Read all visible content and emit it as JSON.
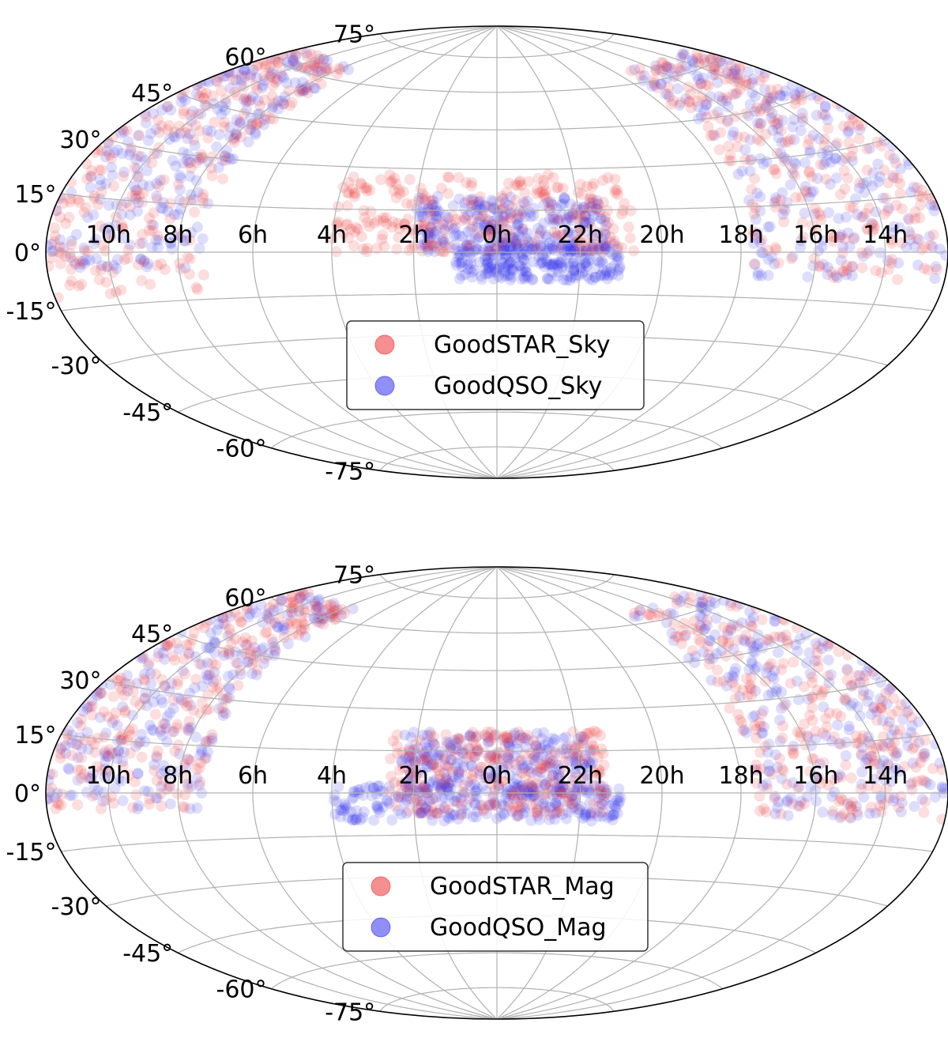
{
  "chart_data": [
    {
      "type": "scatter",
      "projection": "hammer",
      "ra_tick_labels": [
        "14h",
        "16h",
        "18h",
        "20h",
        "22h",
        "0h",
        "2h",
        "4h",
        "6h",
        "8h",
        "10h"
      ],
      "ra_tick_hours": [
        14,
        16,
        18,
        20,
        22,
        0,
        2,
        4,
        6,
        8,
        10
      ],
      "dec_tick_labels": [
        "75°",
        "60°",
        "45°",
        "30°",
        "15°",
        "0°",
        "-15°",
        "-30°",
        "-45°",
        "-60°",
        "-75°"
      ],
      "dec_tick_values": [
        75,
        60,
        45,
        30,
        15,
        0,
        -15,
        -30,
        -45,
        -60,
        -75
      ],
      "grid": true,
      "legend_position": "lower-center",
      "series": [
        {
          "name": "GoodSTAR_Sky",
          "color": "#ee3333"
        },
        {
          "name": "GoodQSO_Sky",
          "color": "#3333ee"
        }
      ],
      "regions": [
        {
          "series": "GoodQSO_Sky",
          "ra_min": -45,
          "ra_max": 15,
          "dec_min": -10,
          "dec_max": 3
        },
        {
          "series": "GoodQSO_Sky",
          "ra_min": -40,
          "ra_max": 30,
          "dec_min": 0,
          "dec_max": 20
        },
        {
          "series": "GoodSTAR_Sky",
          "ra_min": -50,
          "ra_max": 60,
          "dec_min": 0,
          "dec_max": 28
        },
        {
          "series": "GoodQSO_Sky",
          "ra_min": 110,
          "ra_max": 180,
          "dec_min": -5,
          "dec_max": 65
        },
        {
          "series": "GoodSTAR_Sky",
          "ra_min": 110,
          "ra_max": 180,
          "dec_min": -12,
          "dec_max": 65
        },
        {
          "series": "GoodQSO_Sky",
          "ra_min": -180,
          "ra_max": -95,
          "dec_min": -8,
          "dec_max": 65
        },
        {
          "series": "GoodSTAR_Sky",
          "ra_min": -180,
          "ra_max": -95,
          "dec_min": -8,
          "dec_max": 65
        }
      ]
    },
    {
      "type": "scatter",
      "projection": "hammer",
      "ra_tick_labels": [
        "14h",
        "16h",
        "18h",
        "20h",
        "22h",
        "0h",
        "2h",
        "4h",
        "6h",
        "8h",
        "10h"
      ],
      "ra_tick_hours": [
        14,
        16,
        18,
        20,
        22,
        0,
        2,
        4,
        6,
        8,
        10
      ],
      "dec_tick_labels": [
        "75°",
        "60°",
        "45°",
        "30°",
        "15°",
        "0°",
        "-15°",
        "-30°",
        "-45°",
        "-60°",
        "-75°"
      ],
      "dec_tick_values": [
        75,
        60,
        45,
        30,
        15,
        0,
        -15,
        -30,
        -45,
        -60,
        -75
      ],
      "grid": true,
      "legend_position": "lower-center",
      "series": [
        {
          "name": "GoodSTAR_Mag",
          "color": "#ee3333"
        },
        {
          "name": "GoodQSO_Mag",
          "color": "#3333ee"
        }
      ],
      "regions": [
        {
          "series": "GoodQSO_Mag",
          "ra_min": -45,
          "ra_max": 60,
          "dec_min": -10,
          "dec_max": 3
        },
        {
          "series": "GoodQSO_Mag",
          "ra_min": -35,
          "ra_max": 35,
          "dec_min": 0,
          "dec_max": 22
        },
        {
          "series": "GoodSTAR_Mag",
          "ra_min": -40,
          "ra_max": 40,
          "dec_min": -8,
          "dec_max": 22
        },
        {
          "series": "GoodQSO_Mag",
          "ra_min": 110,
          "ra_max": 180,
          "dec_min": -5,
          "dec_max": 65
        },
        {
          "series": "GoodSTAR_Mag",
          "ra_min": 110,
          "ra_max": 180,
          "dec_min": -5,
          "dec_max": 65
        },
        {
          "series": "GoodQSO_Mag",
          "ra_min": -180,
          "ra_max": -95,
          "dec_min": -8,
          "dec_max": 65
        },
        {
          "series": "GoodSTAR_Mag",
          "ra_min": -180,
          "ra_max": -95,
          "dec_min": -8,
          "dec_max": 65
        }
      ]
    }
  ]
}
